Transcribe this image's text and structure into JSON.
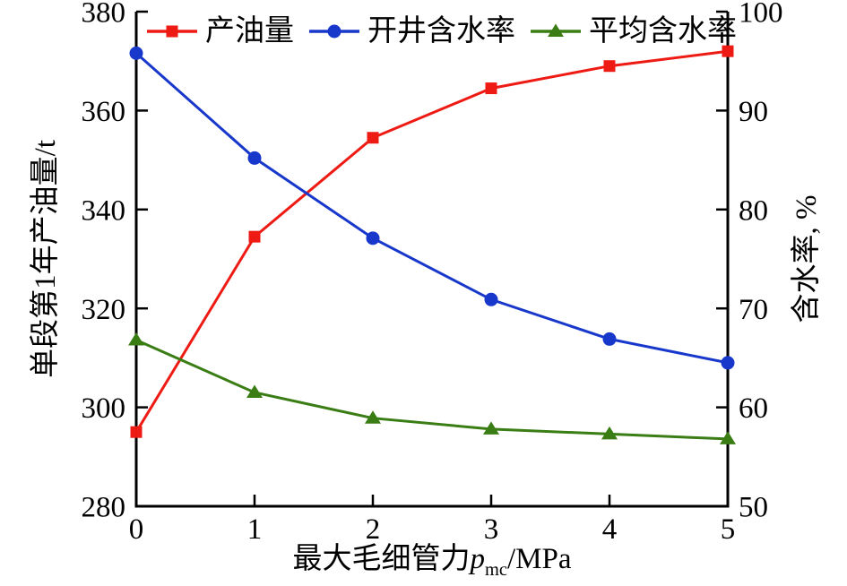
{
  "chart_data": {
    "type": "line",
    "x": [
      0,
      1,
      2,
      3,
      4,
      5
    ],
    "x_ticks": [
      "0",
      "1",
      "2",
      "3",
      "4",
      "5"
    ],
    "xlim": [
      0,
      5
    ],
    "ylim_left": [
      280,
      380
    ],
    "ylim_right": [
      50,
      100
    ],
    "y_left_ticks": [
      280,
      300,
      320,
      340,
      360,
      380
    ],
    "y_right_ticks": [
      50,
      60,
      70,
      80,
      90,
      100
    ],
    "xlabel": {
      "prefix": "最大毛细管力",
      "var": "p",
      "sub": "mc",
      "suffix": "/MPa"
    },
    "ylabel_left": "单段第1年产油量/t",
    "ylabel_right": "含水率, %",
    "grid": false,
    "legend_position": "top-inside-horizontal",
    "axis_color": "#000000",
    "background": "#ffffff",
    "series": [
      {
        "id": "oil-production",
        "name": "产油量",
        "axis": "left",
        "color": "#ee1b15",
        "marker": "square",
        "values": [
          295,
          334.5,
          354.5,
          364.5,
          369,
          372
        ]
      },
      {
        "id": "well-opening-water-cut",
        "name": "开井含水率",
        "axis": "right",
        "color": "#1838cc",
        "marker": "circle",
        "values": [
          95.8,
          85.2,
          77.1,
          70.9,
          66.9,
          64.5
        ]
      },
      {
        "id": "average-water-cut",
        "name": "平均含水率",
        "axis": "right",
        "color": "#3a7d14",
        "marker": "triangle",
        "values": [
          66.8,
          61.5,
          58.9,
          57.8,
          57.3,
          56.8
        ]
      }
    ]
  }
}
